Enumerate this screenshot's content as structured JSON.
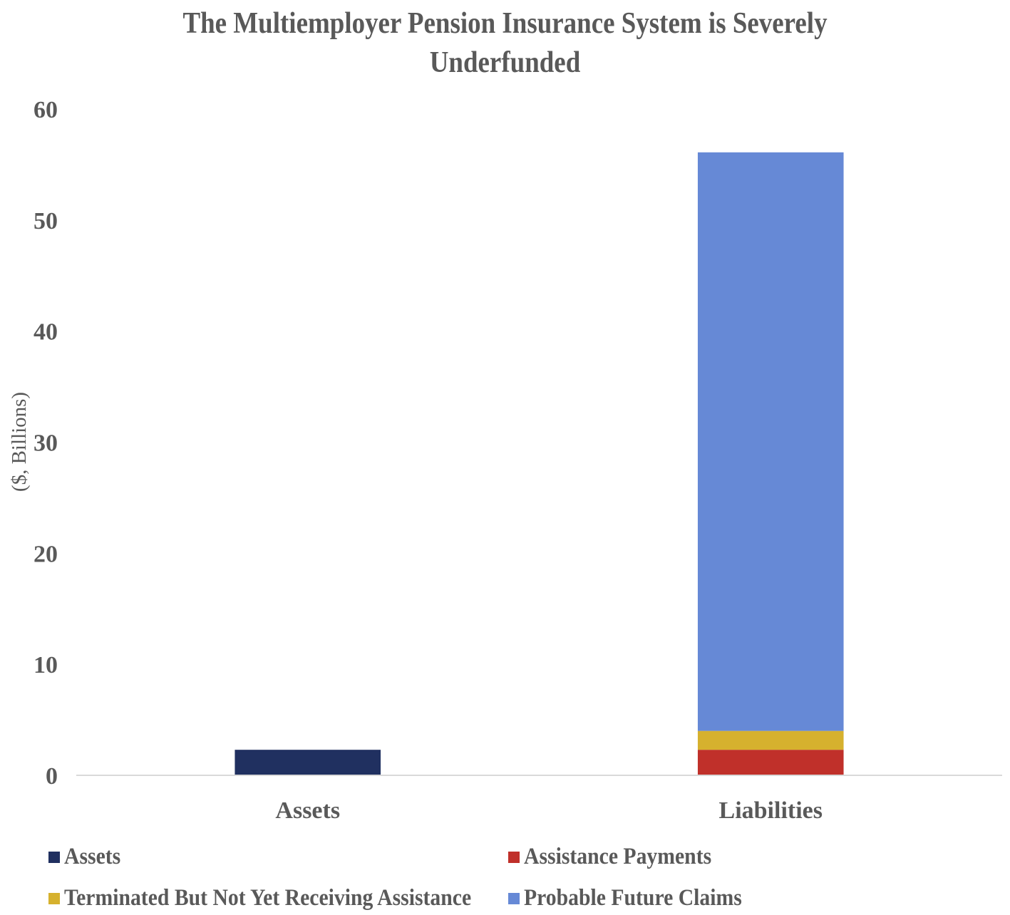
{
  "chart_data": {
    "type": "bar",
    "stacked": true,
    "title": "The Multiemployer Pension Insurance System is Severely Underfunded",
    "title_lines": [
      "The Multiemployer Pension Insurance System is Severely",
      "Underfunded"
    ],
    "xlabel": "",
    "ylabel": "($, Billions)",
    "ylim": [
      0,
      60
    ],
    "yticks": [
      "0",
      "10",
      "20",
      "30",
      "40",
      "50",
      "60"
    ],
    "categories": [
      "Assets",
      "Liabilities"
    ],
    "grid": false,
    "legend_position": "bottom",
    "series": [
      {
        "name": "Assets",
        "color": "#203060",
        "values": [
          2.3,
          0
        ]
      },
      {
        "name": "Assistance Payments",
        "color": "#C0302A",
        "values": [
          0,
          2.3
        ]
      },
      {
        "name": "Terminated But Not Yet Receiving Assistance",
        "color": "#D6B12E",
        "values": [
          0,
          1.7
        ]
      },
      {
        "name": "Probable Future Claims",
        "color": "#6689D6",
        "values": [
          0,
          52.1
        ]
      }
    ]
  }
}
